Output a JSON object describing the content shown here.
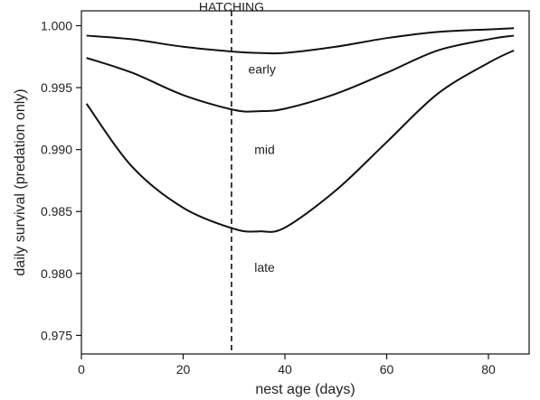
{
  "chart_data": {
    "type": "line",
    "title": "",
    "xlabel": "nest age (days)",
    "ylabel": "daily survival (predation only)",
    "xlim": [
      0,
      88
    ],
    "ylim": [
      0.9735,
      1.0012
    ],
    "xticks": [
      0,
      20,
      40,
      60,
      80
    ],
    "yticks": [
      0.975,
      0.98,
      0.985,
      0.99,
      0.995,
      1.0
    ],
    "xtick_labels": [
      "0",
      "20",
      "40",
      "60",
      "80"
    ],
    "ytick_labels": [
      "0.975",
      "0.980",
      "0.985",
      "0.990",
      "0.995",
      "1.000"
    ],
    "grid": false,
    "legend": "none",
    "line_color": "#111111",
    "annotations": [
      {
        "text": "HATCHING",
        "x": 29.5,
        "kind": "vertical-dashed-line"
      }
    ],
    "series": [
      {
        "name": "early",
        "x": [
          1,
          10,
          20,
          30,
          35,
          40,
          50,
          60,
          70,
          80,
          85
        ],
        "y": [
          0.9992,
          0.9989,
          0.9983,
          0.9979,
          0.9978,
          0.9978,
          0.9983,
          0.999,
          0.9995,
          0.9997,
          0.9998
        ]
      },
      {
        "name": "mid",
        "x": [
          1,
          10,
          20,
          30,
          35,
          40,
          50,
          60,
          70,
          80,
          85
        ],
        "y": [
          0.9974,
          0.9962,
          0.9944,
          0.9932,
          0.9931,
          0.9933,
          0.9945,
          0.9962,
          0.998,
          0.9989,
          0.9992
        ]
      },
      {
        "name": "late",
        "x": [
          1,
          10,
          20,
          30,
          35,
          40,
          50,
          60,
          70,
          80,
          85
        ],
        "y": [
          0.9937,
          0.9886,
          0.9853,
          0.9836,
          0.9834,
          0.9837,
          0.9867,
          0.9906,
          0.9945,
          0.997,
          0.998
        ]
      }
    ],
    "series_label_positions": [
      {
        "name": "early",
        "x": 35.5,
        "y": 0.9965
      },
      {
        "name": "mid",
        "x": 36,
        "y": 0.99
      },
      {
        "name": "late",
        "x": 36,
        "y": 0.9805
      }
    ]
  }
}
